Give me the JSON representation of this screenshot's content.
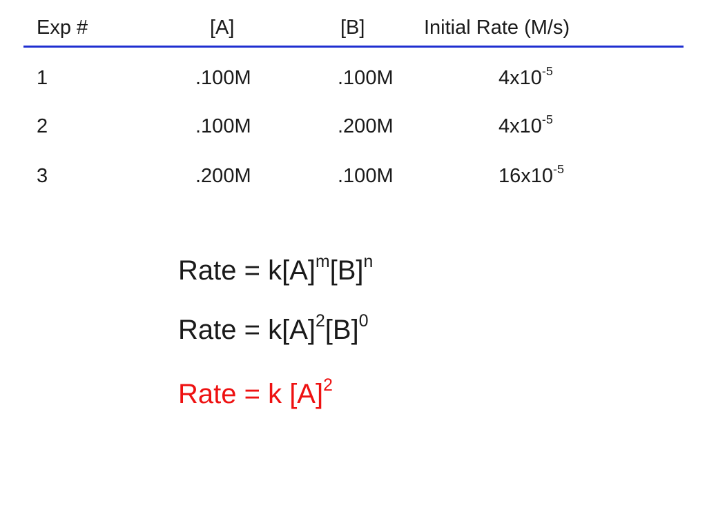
{
  "table": {
    "headers": {
      "exp": "Exp #",
      "a": "[A]",
      "b": "[B]",
      "rate": "Initial Rate (M/s)"
    },
    "rows": [
      {
        "exp": "1",
        "a": ".100M",
        "b": ".100M",
        "rate_base": "4x10",
        "rate_exp": "-5"
      },
      {
        "exp": "2",
        "a": ".100M",
        "b": ".200M",
        "rate_base": "4x10",
        "rate_exp": "-5"
      },
      {
        "exp": "3",
        "a": ".200M",
        "b": ".100M",
        "rate_base": "16x10",
        "rate_exp": "-5"
      }
    ],
    "rule_color": "#1f2fd0"
  },
  "equations": {
    "general": {
      "prefix": "Rate = k[A]",
      "m": "m",
      "mid": "[B]",
      "n": "n"
    },
    "substituted": {
      "prefix": "Rate = k[A]",
      "m": "2",
      "mid": "[B]",
      "n": "0"
    },
    "final": {
      "prefix": "Rate = k [A]",
      "m": "2",
      "color": "#ee1111"
    }
  }
}
